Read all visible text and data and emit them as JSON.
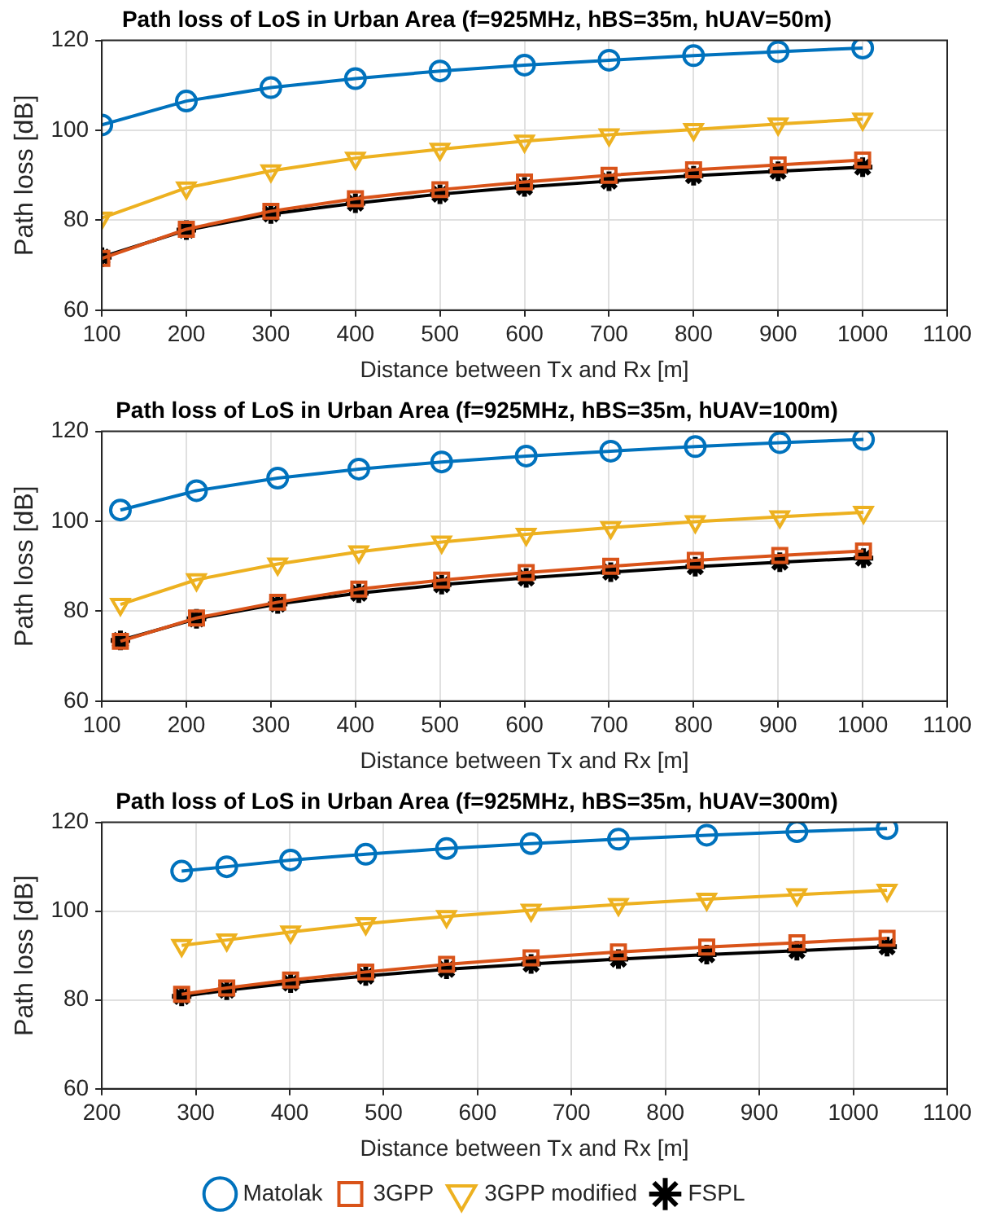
{
  "chart_data": [
    {
      "type": "line",
      "title": "Path loss of LoS in Urban Area (f=925MHz, hBS=35m, hUAV=50m)",
      "xlabel": "Distance between Tx and Rx [m]",
      "ylabel": "Path loss [dB]",
      "x": [
        100,
        200,
        300,
        400,
        500,
        600,
        700,
        800,
        900,
        1000
      ],
      "series": [
        {
          "color": "#0072bd",
          "marker": "circle",
          "values": [
            101.2,
            106.5,
            109.5,
            111.5,
            113.2,
            114.5,
            115.6,
            116.6,
            117.5,
            118.3
          ]
        },
        {
          "color": "#d95319",
          "marker": "square",
          "values": [
            71.5,
            78,
            82,
            84.8,
            86.8,
            88.5,
            90,
            91.2,
            92.3,
            93.4
          ]
        },
        {
          "color": "#edb120",
          "marker": "triangle",
          "values": [
            80.5,
            87.2,
            91,
            93.8,
            95.8,
            97.6,
            99,
            100.2,
            101.4,
            102.5
          ]
        },
        {
          "color": "#000000",
          "marker": "cross",
          "values": [
            71.8,
            77.8,
            81.4,
            83.8,
            85.8,
            87.4,
            88.7,
            89.9,
            90.9,
            91.8
          ]
        }
      ],
      "xlim": [
        100,
        1100
      ],
      "xticks": [
        100,
        200,
        300,
        400,
        500,
        600,
        700,
        800,
        900,
        1000,
        1100
      ],
      "ylim": [
        60,
        120
      ],
      "yticks": [
        60,
        80,
        100,
        120
      ],
      "grid": true,
      "legend": false
    },
    {
      "type": "line",
      "title": "Path loss of LoS in Urban Area (f=925MHz, hBS=35m, hUAV=100m)",
      "xlabel": "Distance between Tx and Rx [m]",
      "ylabel": "Path loss [dB]",
      "x": [
        122,
        212,
        308,
        404,
        502,
        602,
        702,
        802,
        902,
        1001
      ],
      "series": [
        {
          "color": "#0072bd",
          "marker": "circle",
          "values": [
            102.5,
            106.8,
            109.6,
            111.6,
            113.2,
            114.5,
            115.6,
            116.6,
            117.5,
            118.2
          ]
        },
        {
          "color": "#d95319",
          "marker": "square",
          "values": [
            73.3,
            78.5,
            82,
            84.9,
            86.9,
            88.6,
            90,
            91.3,
            92.4,
            93.4
          ]
        },
        {
          "color": "#edb120",
          "marker": "triangle",
          "values": [
            81.5,
            87,
            90.5,
            93.2,
            95.4,
            97.1,
            98.6,
            99.9,
            101,
            102
          ]
        },
        {
          "color": "#000000",
          "marker": "cross",
          "values": [
            73.5,
            78.3,
            81.6,
            84,
            85.9,
            87.4,
            88.7,
            89.9,
            90.9,
            91.8
          ]
        }
      ],
      "xlim": [
        100,
        1100
      ],
      "xticks": [
        100,
        200,
        300,
        400,
        500,
        600,
        700,
        800,
        900,
        1000,
        1100
      ],
      "ylim": [
        60,
        120
      ],
      "yticks": [
        60,
        80,
        100,
        120
      ],
      "grid": true,
      "legend": false
    },
    {
      "type": "line",
      "title": "Path loss of LoS in Urban Area (f=925MHz, hBS=35m, hUAV=300m)",
      "xlabel": "Distance between Tx and Rx [m]",
      "ylabel": "Path loss [dB]",
      "x": [
        285,
        333,
        401,
        481,
        567,
        657,
        750,
        844,
        940,
        1036
      ],
      "series": [
        {
          "name": "Matolak",
          "color": "#0072bd",
          "marker": "circle",
          "values": [
            109,
            110,
            111.5,
            112.8,
            114.1,
            115.2,
            116.2,
            117.1,
            117.9,
            118.6
          ]
        },
        {
          "name": "3GPP",
          "color": "#d95319",
          "marker": "square",
          "values": [
            81.3,
            82.7,
            84.5,
            86.3,
            88,
            89.5,
            90.8,
            91.9,
            92.9,
            93.9
          ]
        },
        {
          "name": "3GPP modified",
          "color": "#edb120",
          "marker": "triangle",
          "values": [
            92.3,
            93.5,
            95.3,
            97.2,
            98.8,
            100.2,
            101.5,
            102.7,
            103.7,
            104.7
          ]
        },
        {
          "name": "FSPL",
          "color": "#000000",
          "marker": "cross",
          "values": [
            80.8,
            82.2,
            83.8,
            85.4,
            86.9,
            88.1,
            89.2,
            90.2,
            91.1,
            92
          ]
        }
      ],
      "xlim": [
        200,
        1100
      ],
      "xticks": [
        200,
        300,
        400,
        500,
        600,
        700,
        800,
        900,
        1000,
        1100
      ],
      "ylim": [
        60,
        120
      ],
      "yticks": [
        60,
        80,
        100,
        120
      ],
      "grid": true,
      "legend": "bottom"
    }
  ]
}
